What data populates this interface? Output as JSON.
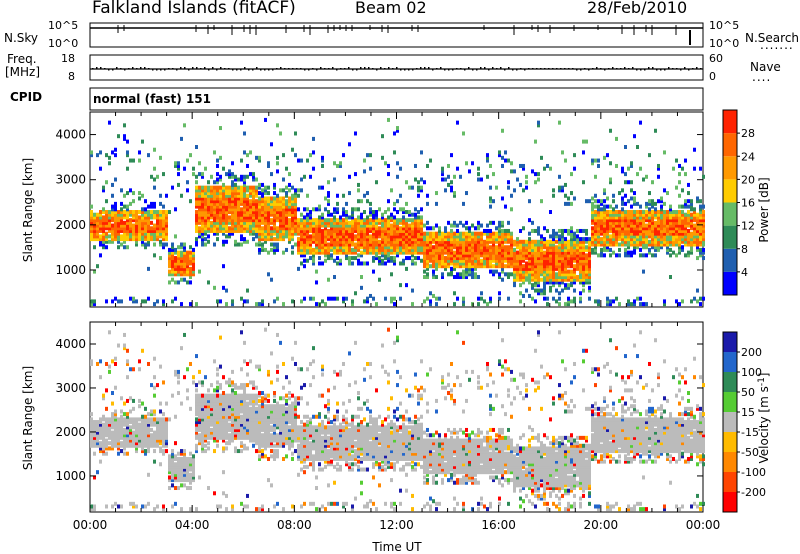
{
  "header": {
    "site": "Falkland Islands (fitACF)",
    "beam": "Beam 02",
    "date": "28/Feb/2010"
  },
  "strips": {
    "nsky_label": "N.Sky",
    "nsearch_label": "N.Search",
    "nsky_ticks": [
      "10^5",
      "10^0"
    ],
    "nsearch_ticks": [
      "10^5",
      "10^0"
    ],
    "freq_label": "Freq.",
    "freq_unit": "[MHz]",
    "freq_ticks": [
      "18",
      "8"
    ],
    "nave_label": "Nave",
    "nave_ticks": [
      "60",
      "0"
    ],
    "cpid_label": "CPID",
    "cpid_value": "normal (fast) 151"
  },
  "chart_data": [
    {
      "type": "heatmap",
      "name": "power",
      "ylabel": "Slant Range [km]",
      "xlabel": "",
      "ylim": [
        180,
        4500
      ],
      "yticks": [
        "1000",
        "2000",
        "3000",
        "4000"
      ],
      "colorbar": {
        "label": "Power [dB]",
        "ticks": [
          "4",
          "8",
          "12",
          "16",
          "20",
          "24",
          "28"
        ],
        "colors": [
          "#0000ff",
          "#1f5fb0",
          "#2e8b57",
          "#66bb66",
          "#ffcc00",
          "#ff9900",
          "#ff6600",
          "#ff2200"
        ]
      },
      "bands": [
        {
          "t0": 0.0,
          "t1": 3.0,
          "r0": 1600,
          "r1": 2250
        },
        {
          "t0": 2.5,
          "t1": 4.0,
          "r0": 800,
          "r1": 1400
        },
        {
          "t0": 3.0,
          "t1": 6.5,
          "r0": 1800,
          "r1": 2800
        },
        {
          "t0": 6.5,
          "t1": 8.0,
          "r0": 1600,
          "r1": 2600
        },
        {
          "t0": 8.0,
          "t1": 13.0,
          "r0": 1300,
          "r1": 2100
        },
        {
          "t0": 13.0,
          "t1": 16.5,
          "r0": 1000,
          "r1": 1800
        },
        {
          "t0": 16.5,
          "t1": 19.5,
          "r0": 700,
          "r1": 1600
        },
        {
          "t0": 19.5,
          "t1": 24.0,
          "r0": 1500,
          "r1": 2300
        }
      ]
    },
    {
      "type": "heatmap",
      "name": "velocity",
      "ylabel": "Slant Range [km]",
      "xlabel": "Time UT",
      "ylim": [
        180,
        4500
      ],
      "yticks": [
        "1000",
        "2000",
        "3000",
        "4000"
      ],
      "xticks": [
        "00:00",
        "04:00",
        "08:00",
        "12:00",
        "16:00",
        "20:00",
        "00:00"
      ],
      "colorbar": {
        "label": "Velocity [m s-1]",
        "ticks": [
          "200",
          "100",
          "50",
          "15",
          "-15",
          "-50",
          "-100",
          "-200"
        ],
        "colors": [
          "#1a1aaa",
          "#2266cc",
          "#2e8b57",
          "#55cc33",
          "#bbbbbb",
          "#ffbb00",
          "#ff8800",
          "#ff4400",
          "#ff0000"
        ]
      }
    }
  ]
}
